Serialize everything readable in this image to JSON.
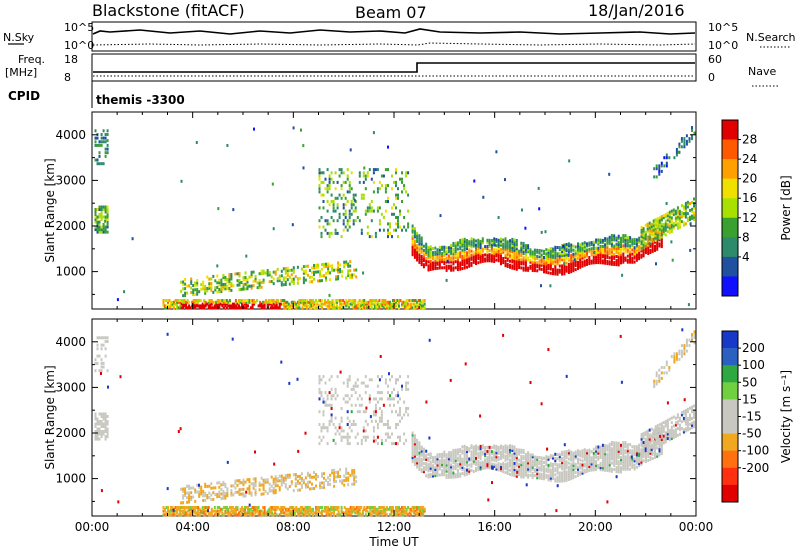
{
  "header": {
    "station": "Blackstone (fitACF)",
    "beam": "Beam 07",
    "date": "18/Jan/2016"
  },
  "status_panels": {
    "nsky_label": "N.Sky",
    "freq_label_1": "Freq.",
    "freq_label_2": "[MHz]",
    "cpid_label": "CPID",
    "cpid_value": "themis -3300",
    "nsearch_label": "N.Search",
    "nave_label": "Nave",
    "noise_ticks_left": [
      "10^5",
      "10^0"
    ],
    "noise_ticks_right": [
      "10^5",
      "10^0"
    ],
    "freq_ticks_left": [
      "18",
      "8"
    ],
    "nave_ticks_right": [
      "60",
      "0"
    ]
  },
  "chart_data": [
    {
      "type": "heatmap",
      "panel": "power",
      "ylabel": "Slant Range [km]",
      "colorbar_label": "Power [dB]",
      "colorbar_ticks": [
        "28",
        "24",
        "20",
        "16",
        "12",
        "8",
        "4"
      ],
      "colorbar_colors": [
        "#e00000",
        "#ff5a00",
        "#ffa000",
        "#f0e000",
        "#a8e000",
        "#3aa030",
        "#2d8a6a",
        "#2050a0",
        "#1010ff"
      ],
      "ylim": [
        180,
        4500
      ],
      "yticks": [
        "4000",
        "3000",
        "2000",
        "1000"
      ],
      "xlim_hours": [
        0,
        24
      ],
      "xticks": [
        "00:00",
        "04:00",
        "08:00",
        "12:00",
        "16:00",
        "20:00",
        "00:00"
      ],
      "xlabel": "Time UT"
    },
    {
      "type": "heatmap",
      "panel": "velocity",
      "ylabel": "Slant Range [km]",
      "colorbar_label": "Velocity [m s⁻¹]",
      "colorbar_ticks": [
        "200",
        "100",
        "50",
        "15",
        "-15",
        "-50",
        "-100",
        "-200"
      ],
      "colorbar_colors": [
        "#1838c8",
        "#2a60c0",
        "#2ea840",
        "#70d040",
        "#c8c8c0",
        "#c8c8c0",
        "#f0a820",
        "#ff7010",
        "#ff3010",
        "#e00000"
      ],
      "ylim": [
        180,
        4500
      ],
      "yticks": [
        "4000",
        "3000",
        "2000",
        "1000"
      ],
      "xlim_hours": [
        0,
        24
      ],
      "xticks": [
        "00:00",
        "04:00",
        "08:00",
        "12:00",
        "16:00",
        "20:00",
        "00:00"
      ],
      "xlabel": "Time UT"
    }
  ]
}
